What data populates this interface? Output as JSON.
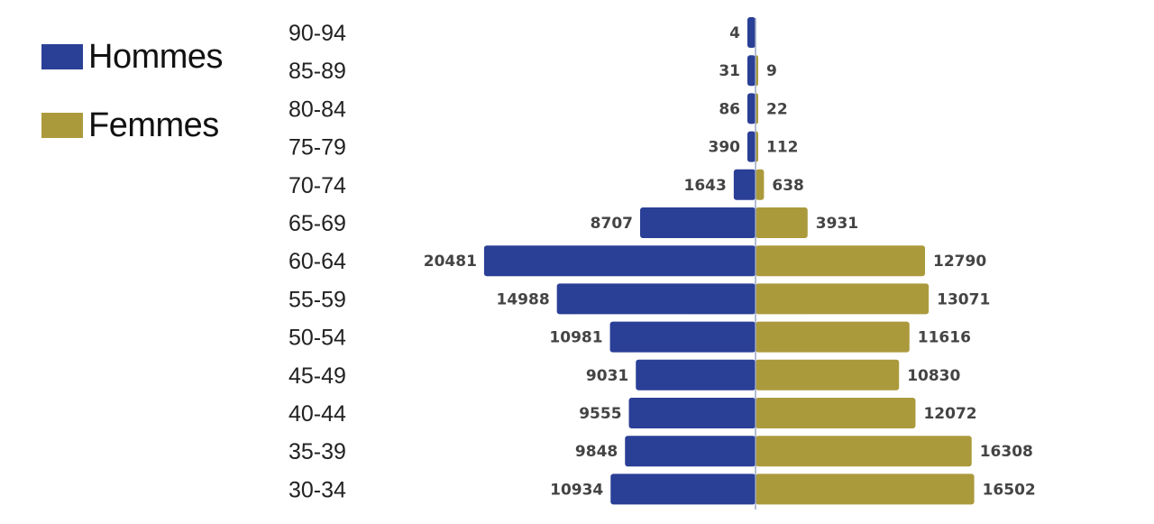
{
  "legend": {
    "men_label": "Hommes",
    "women_label": "Femmes"
  },
  "colors": {
    "men": "#2a3f96",
    "women": "#ab9a3c"
  },
  "chart_data": {
    "type": "bar",
    "orientation": "horizontal-pyramid",
    "categories": [
      "90-94",
      "85-89",
      "80-84",
      "75-79",
      "70-74",
      "65-69",
      "60-64",
      "55-59",
      "50-54",
      "45-49",
      "40-44",
      "35-39",
      "30-34"
    ],
    "series": [
      {
        "name": "Hommes",
        "values": [
          4,
          31,
          86,
          390,
          1643,
          8707,
          20481,
          14988,
          10981,
          9031,
          9555,
          9848,
          10934
        ]
      },
      {
        "name": "Femmes",
        "values": [
          null,
          9,
          22,
          112,
          638,
          3931,
          12790,
          13071,
          11616,
          10830,
          12072,
          16308,
          16502
        ]
      }
    ],
    "legend_position": "top-left",
    "grid": false
  }
}
